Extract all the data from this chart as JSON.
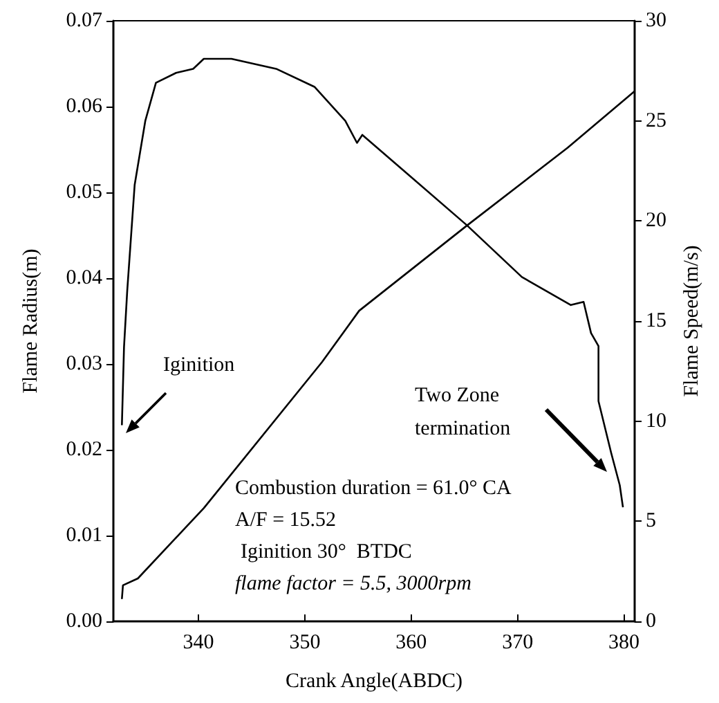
{
  "chart_data": {
    "type": "line",
    "xlabel": "Crank Angle(ABDC)",
    "ylabel": "Flame Radius(m)",
    "y2label": "Flame Speed(m/s)",
    "xlim": [
      332,
      381
    ],
    "xticks": [
      340,
      350,
      360,
      370,
      380
    ],
    "ylim": [
      0,
      0.07
    ],
    "yticks": [
      {
        "value": 0,
        "label": "0.00"
      },
      {
        "value": 0.01,
        "label": "0.01"
      },
      {
        "value": 0.02,
        "label": "0.02"
      },
      {
        "value": 0.03,
        "label": "0.03"
      },
      {
        "value": 0.04,
        "label": "0.04"
      },
      {
        "value": 0.05,
        "label": "0.05"
      },
      {
        "value": 0.06,
        "label": "0.06"
      },
      {
        "value": 0.07,
        "label": "0.07"
      }
    ],
    "y2lim": [
      0,
      30
    ],
    "y2ticks": [
      0,
      5,
      10,
      15,
      20,
      25,
      30
    ],
    "series": [
      {
        "color": "#000000",
        "x": [
          332.8,
          332.9,
          334.3,
          340.5,
          351.6,
          355.1,
          365.2,
          374.7,
          381
        ],
        "values": [
          0.0026,
          0.0042,
          0.005,
          0.0132,
          0.0302,
          0.0362,
          0.0461,
          0.0552,
          0.0618
        ]
      },
      {
        "color": "#000000",
        "axis": "y2",
        "x": [
          332.8,
          333.0,
          333.3,
          334.0,
          335.0,
          336.0,
          337.9,
          339.5,
          340.5,
          343.1,
          347.3,
          350.9,
          353.8,
          354.9,
          355.4,
          365.2,
          370.4,
          375.0,
          376.2,
          376.9,
          377.6,
          377.6,
          378.8,
          379.6,
          379.9
        ],
        "values": [
          9.8,
          13.7,
          16.5,
          21.8,
          25.0,
          26.9,
          27.4,
          27.6,
          28.1,
          28.1,
          27.6,
          26.7,
          25.0,
          23.9,
          24.3,
          19.8,
          17.2,
          15.8,
          15.96,
          14.4,
          13.75,
          11.0,
          8.4,
          6.8,
          5.7
        ]
      }
    ],
    "annotations": [
      "Iginition",
      "Two Zone termination",
      "Combustion duration = 61.0° CA",
      "A/F = 15.52",
      "Iginition 30°  BTDC",
      "flame factor = 5.5, 3000rpm"
    ],
    "grid": false,
    "marker": "none",
    "line_style": "solid"
  }
}
